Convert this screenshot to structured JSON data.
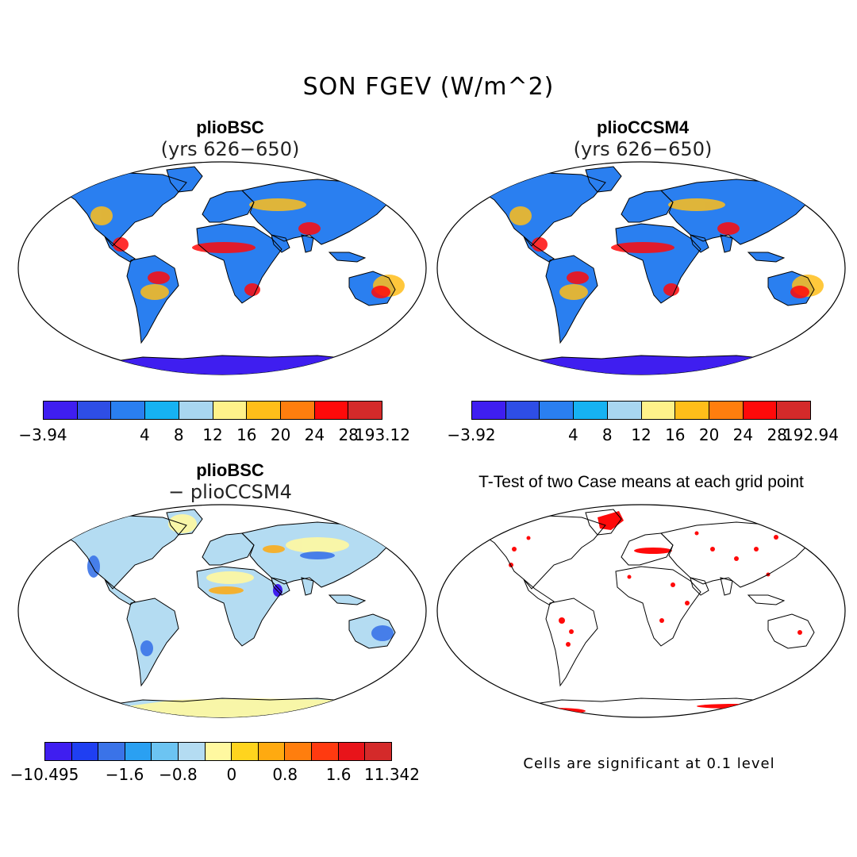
{
  "figure": {
    "title": "SON FGEV (W/m^2)"
  },
  "panels": [
    {
      "id": "bsc",
      "title": "plioBSC",
      "subtitle": "(yrs 626−650)",
      "colorbar": {
        "colors": [
          "#3f1ef0",
          "#2e4ee6",
          "#2a7ff0",
          "#16b2f2",
          "#a8d6f0",
          "#fff28a",
          "#ffbe1a",
          "#ff7e0e",
          "#ff0a0a",
          "#d42a2a"
        ],
        "labels": [
          "−3.94",
          "4",
          "8",
          "12",
          "16",
          "20",
          "24",
          "28",
          "193.12"
        ]
      }
    },
    {
      "id": "ccsm4",
      "title": "plioCCSM4",
      "subtitle": "(yrs 626−650)",
      "colorbar": {
        "colors": [
          "#3f1ef0",
          "#2e4ee6",
          "#2a7ff0",
          "#16b2f2",
          "#a8d6f0",
          "#fff28a",
          "#ffbe1a",
          "#ff7e0e",
          "#ff0a0a",
          "#d42a2a"
        ],
        "labels": [
          "−3.92",
          "4",
          "8",
          "12",
          "16",
          "20",
          "24",
          "28",
          "192.94"
        ]
      }
    },
    {
      "id": "diff",
      "title": "plioBSC",
      "subtitle": "− plioCCSM4",
      "colorbar": {
        "colors": [
          "#3f1ef0",
          "#1f3ff2",
          "#3a73e8",
          "#2aa0f2",
          "#6cc4f2",
          "#b4dcf2",
          "#fff8a0",
          "#ffd41e",
          "#ffaa10",
          "#ff7e0e",
          "#ff3a10",
          "#e8141a",
          "#d42a2a"
        ],
        "labels": [
          "−10.495",
          "−1.6",
          "−0.8",
          "0",
          "0.8",
          "1.6",
          "11.342"
        ]
      }
    },
    {
      "id": "ttest",
      "title": "T-Test of two Case means at each grid point",
      "note": "Cells are significant at 0.1 level"
    }
  ]
}
